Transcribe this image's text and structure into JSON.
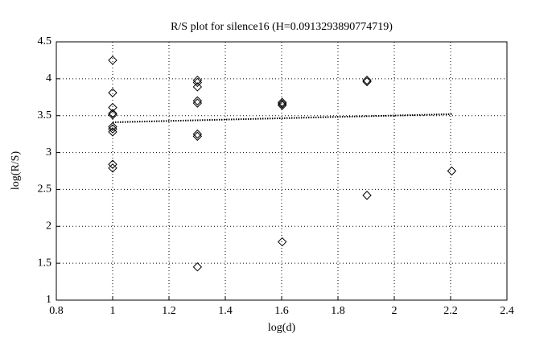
{
  "chart_data": {
    "type": "scatter",
    "title": "R/S plot for silence16 (H=0.0913293890774719)",
    "xlabel": "log(d)",
    "ylabel": "log(R/S)",
    "xlim": [
      0.8,
      2.4
    ],
    "xticks": [
      0.8,
      1,
      1.2,
      1.4,
      1.6,
      1.8,
      2,
      2.2,
      2.4
    ],
    "ylim": [
      1,
      4.5
    ],
    "yticks": [
      1,
      1.5,
      2,
      2.5,
      3,
      3.5,
      4,
      4.5
    ],
    "grid": true,
    "series": [
      {
        "color": "#000000",
        "marker": "diamond",
        "x": [
          1,
          1,
          1,
          1,
          1,
          1,
          1,
          1,
          1,
          1,
          1.301,
          1.301,
          1.301,
          1.301,
          1.301,
          1.301,
          1.301,
          1.301,
          1.602,
          1.602,
          1.602,
          1.602,
          1.903,
          1.903,
          1.903,
          2.204
        ],
        "values": [
          4.25,
          3.81,
          3.61,
          3.53,
          3.51,
          3.35,
          3.32,
          3.28,
          2.84,
          2.79,
          3.98,
          3.95,
          3.89,
          3.7,
          3.67,
          3.25,
          3.22,
          1.45,
          3.68,
          3.66,
          3.64,
          1.79,
          3.98,
          3.96,
          2.42,
          2.75
        ]
      },
      {
        "color": "#000000",
        "line": "dotted",
        "x": [
          1,
          2.204
        ],
        "values": [
          3.41,
          3.52
        ]
      }
    ]
  }
}
